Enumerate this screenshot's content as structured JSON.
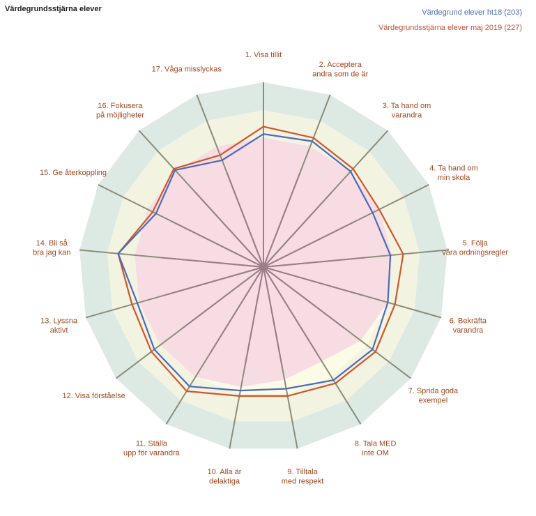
{
  "title": "Värdegrundsstjärna elever",
  "legend": [
    {
      "label": "Värdegrund elever ht18 (203)",
      "color": "#4a6bb8"
    },
    {
      "label": "Värdegrundsstjärna elever maj 2019 (227)",
      "color": "#c0503a"
    }
  ],
  "colors": {
    "band_outer": "#dde9e3",
    "band_middle": "#f3f3e2",
    "band_inner": "#fcfbe6",
    "pink_area": "#f7dce4",
    "spoke": "#8c8c78",
    "spoke_inner": "#9a7e8a",
    "label": "#a0461e"
  },
  "chart_data": {
    "type": "radar",
    "scale": {
      "max": 100,
      "bands": [
        55,
        70,
        85,
        100
      ]
    },
    "axes": [
      {
        "label": [
          "1. Visa tillit"
        ]
      },
      {
        "label": [
          "2. Acceptera",
          "andra som de är"
        ]
      },
      {
        "label": [
          "3. Ta hand om",
          "varandra"
        ]
      },
      {
        "label": [
          "4. Ta hand om",
          "min skola"
        ]
      },
      {
        "label": [
          "5. Följa",
          "våra ordningsregler"
        ]
      },
      {
        "label": [
          "6. Bekräfta",
          "varandra"
        ]
      },
      {
        "label": [
          "7. Sprida goda",
          "exempel"
        ]
      },
      {
        "label": [
          "8. Tala MED",
          "inte OM"
        ]
      },
      {
        "label": [
          "9. Tilltala",
          "med respekt"
        ]
      },
      {
        "label": [
          "10. Alla är",
          "delaktiga"
        ]
      },
      {
        "label": [
          "11. Ställa",
          "upp för varandra"
        ]
      },
      {
        "label": [
          "12. Visa förståelse"
        ]
      },
      {
        "label": [
          "13. Lyssna",
          "aktivt"
        ]
      },
      {
        "label": [
          "14. Bli så",
          "bra jag kan"
        ]
      },
      {
        "label": [
          "15. Ge återkoppling"
        ]
      },
      {
        "label": [
          "16. Fokusera",
          "på möjligheter"
        ]
      },
      {
        "label": [
          "17. Våga misslyckas"
        ]
      }
    ],
    "series": [
      {
        "name": "Värdegrund elever ht18 (203)",
        "color": "#4a6bb8",
        "values": [
          72,
          73,
          70,
          66,
          69,
          70,
          74,
          72,
          67,
          68,
          76,
          74,
          71,
          79,
          65,
          71,
          62
        ]
      },
      {
        "name": "Värdegrundsstjärna elever maj 2019 (227)",
        "color": "#d0562a",
        "values": [
          76,
          75,
          72,
          70,
          76,
          74,
          76,
          74,
          71,
          71,
          79,
          76,
          74,
          79,
          67,
          72,
          65
        ]
      },
      {
        "name": "",
        "color": "#f7dce4",
        "values": [
          70,
          70,
          70,
          70,
          70,
          70,
          66,
          60,
          62,
          66,
          70,
          70,
          70,
          70,
          70,
          70,
          70
        ]
      }
    ]
  }
}
